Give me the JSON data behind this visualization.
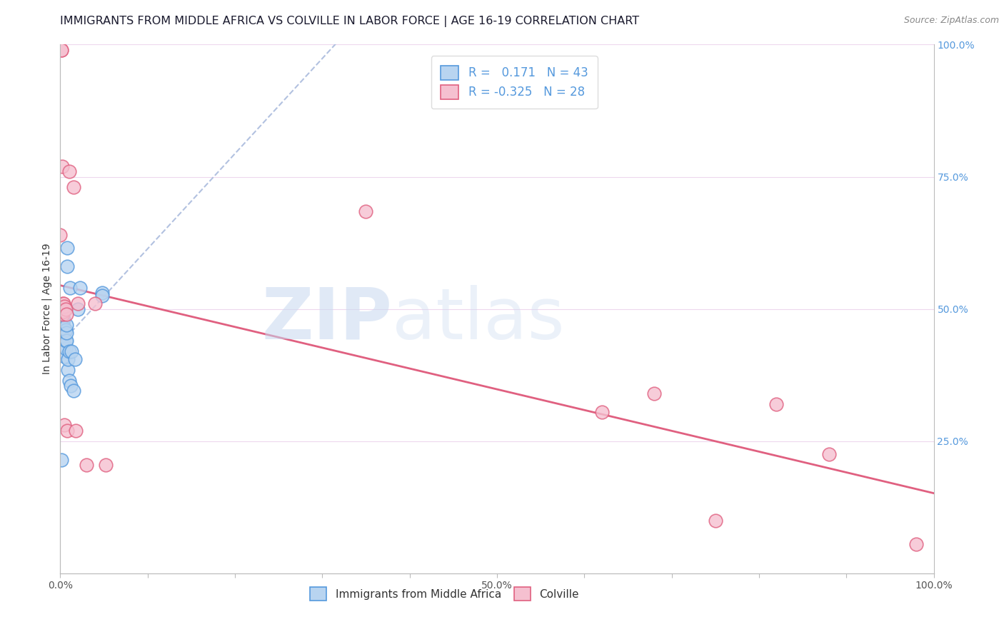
{
  "title": "IMMIGRANTS FROM MIDDLE AFRICA VS COLVILLE IN LABOR FORCE | AGE 16-19 CORRELATION CHART",
  "source": "Source: ZipAtlas.com",
  "ylabel": "In Labor Force | Age 16-19",
  "blue_label": "Immigrants from Middle Africa",
  "pink_label": "Colville",
  "blue_R": 0.171,
  "blue_N": 43,
  "pink_R": -0.325,
  "pink_N": 28,
  "blue_x": [
    0.0,
    0.001,
    0.001,
    0.001,
    0.002,
    0.002,
    0.002,
    0.002,
    0.003,
    0.003,
    0.003,
    0.003,
    0.003,
    0.004,
    0.004,
    0.004,
    0.004,
    0.005,
    0.005,
    0.005,
    0.005,
    0.006,
    0.006,
    0.006,
    0.007,
    0.007,
    0.007,
    0.008,
    0.008,
    0.009,
    0.009,
    0.01,
    0.01,
    0.011,
    0.012,
    0.013,
    0.015,
    0.017,
    0.02,
    0.023,
    0.001,
    0.048,
    0.048
  ],
  "blue_y": [
    0.435,
    0.445,
    0.45,
    0.455,
    0.46,
    0.465,
    0.47,
    0.48,
    0.42,
    0.435,
    0.45,
    0.46,
    0.475,
    0.43,
    0.445,
    0.455,
    0.48,
    0.41,
    0.43,
    0.455,
    0.465,
    0.425,
    0.44,
    0.46,
    0.44,
    0.455,
    0.47,
    0.58,
    0.615,
    0.385,
    0.405,
    0.365,
    0.42,
    0.54,
    0.355,
    0.42,
    0.345,
    0.405,
    0.5,
    0.54,
    0.215,
    0.53,
    0.525
  ],
  "pink_x": [
    0.0,
    0.001,
    0.001,
    0.002,
    0.002,
    0.003,
    0.003,
    0.004,
    0.004,
    0.005,
    0.005,
    0.006,
    0.007,
    0.008,
    0.01,
    0.015,
    0.018,
    0.02,
    0.03,
    0.04,
    0.052,
    0.35,
    0.62,
    0.68,
    0.75,
    0.82,
    0.88,
    0.98
  ],
  "pink_y": [
    0.64,
    0.99,
    0.99,
    0.77,
    0.5,
    0.51,
    0.49,
    0.51,
    0.495,
    0.505,
    0.28,
    0.5,
    0.49,
    0.27,
    0.76,
    0.73,
    0.27,
    0.51,
    0.205,
    0.51,
    0.205,
    0.685,
    0.305,
    0.34,
    0.1,
    0.32,
    0.225,
    0.055
  ],
  "xlim": [
    0.0,
    1.0
  ],
  "ylim": [
    0.0,
    1.0
  ],
  "xticks": [
    0.0,
    0.1,
    0.2,
    0.3,
    0.4,
    0.5,
    0.6,
    0.7,
    0.8,
    0.9,
    1.0
  ],
  "xtick_labels": [
    "0.0%",
    "",
    "",
    "",
    "",
    "50.0%",
    "",
    "",
    "",
    "",
    "100.0%"
  ],
  "yticks_right": [
    0.25,
    0.5,
    0.75,
    1.0
  ],
  "ytick_labels_right": [
    "25.0%",
    "50.0%",
    "75.0%",
    "100.0%"
  ],
  "blue_color": "#b8d4f0",
  "blue_edge_color": "#5599dd",
  "blue_line_color": "#5599dd",
  "pink_color": "#f5c0d0",
  "pink_edge_color": "#e06080",
  "pink_line_color": "#e06080",
  "grid_color": "#edd8ed",
  "bg_color": "#ffffff",
  "title_fontsize": 11.5,
  "axis_fontsize": 10,
  "tick_label_color_blue": "#5599dd",
  "tick_label_color_x": "#555555",
  "watermark_zip_color": "#c8d8f0",
  "watermark_atlas_color": "#c8d8f0"
}
